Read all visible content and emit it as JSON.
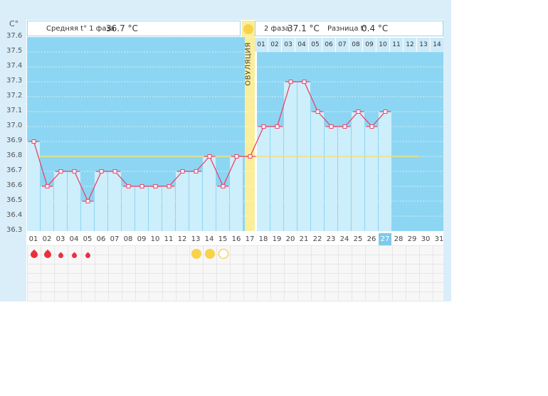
{
  "unit": "C°",
  "header": {
    "phase1_label": "Средняя t° 1 фаза",
    "phase1_value": "36.7 °C",
    "phase2_label": "2 фаза",
    "phase2_value": "37.1 °C",
    "diff_label": "Разница t°",
    "diff_value": "0.4 °C",
    "ovulation_label": "ОВУЛЯЦИЯ"
  },
  "phase2_days": [
    "01",
    "02",
    "03",
    "04",
    "05",
    "06",
    "07",
    "08",
    "09",
    "10",
    "11",
    "12",
    "13",
    "14"
  ],
  "colors": {
    "phase_fill": "#8dd6f3",
    "bar_fill": "#cdeefb",
    "line": "#e8456a",
    "coverline": "#f2e27a",
    "ovulation": "#fbee9a",
    "menses_drop": "#e8313d"
  },
  "chart_data": {
    "type": "line",
    "x": [
      "01",
      "02",
      "03",
      "04",
      "05",
      "06",
      "07",
      "08",
      "09",
      "10",
      "11",
      "12",
      "13",
      "14",
      "15",
      "16",
      "17",
      "18",
      "19",
      "20",
      "21",
      "22",
      "23",
      "24",
      "25",
      "26",
      "27",
      "28",
      "29",
      "30",
      "31"
    ],
    "series": [
      {
        "values": [
          36.9,
          36.6,
          36.7,
          36.7,
          36.5,
          36.7,
          36.7,
          36.6,
          36.6,
          36.6,
          36.6,
          36.7,
          36.7,
          36.8,
          36.6,
          36.8,
          36.8,
          37.0,
          37.0,
          37.3,
          37.3,
          37.1,
          37.0,
          37.0,
          37.1,
          37.0,
          37.1,
          null,
          null,
          null,
          null
        ]
      }
    ],
    "coverline": 36.8,
    "ovulation_day": "17",
    "current_day": "27",
    "yticks": [
      "36.3",
      "36.4",
      "36.5",
      "36.6",
      "36.7",
      "36.8",
      "36.9",
      "37.0",
      "37.1",
      "37.2",
      "37.3",
      "37.4",
      "37.5",
      "37.6"
    ],
    "ylim": [
      36.3,
      37.6
    ],
    "grid": true,
    "menses": [
      {
        "day": "01",
        "size": "large"
      },
      {
        "day": "02",
        "size": "large"
      },
      {
        "day": "03",
        "size": "small"
      },
      {
        "day": "04",
        "size": "small"
      },
      {
        "day": "05",
        "size": "small"
      }
    ],
    "fertility_markers": [
      {
        "day": "13",
        "type": "filled"
      },
      {
        "day": "14",
        "type": "filled"
      },
      {
        "day": "15",
        "type": "outline"
      }
    ]
  }
}
